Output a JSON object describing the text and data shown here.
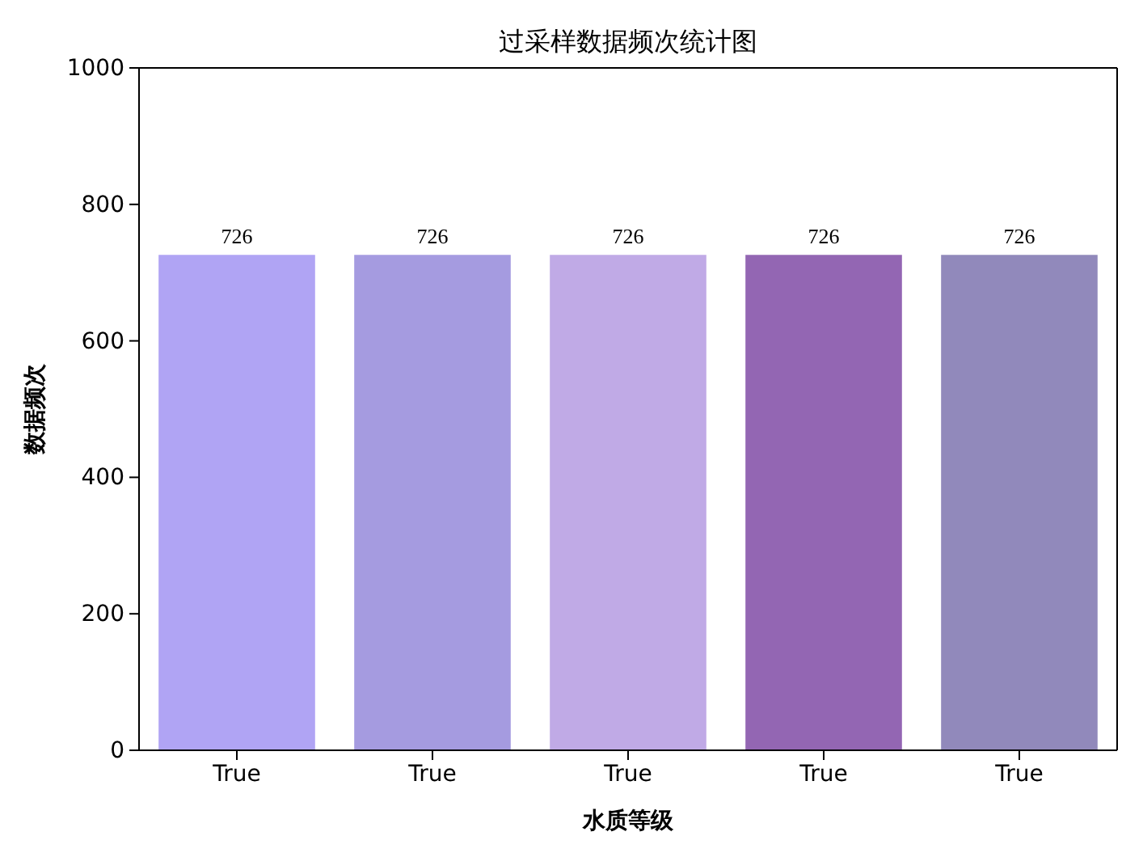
{
  "chart_data": {
    "type": "bar",
    "title": "过采样数据频次统计图",
    "xlabel": "水质等级",
    "ylabel": "数据频次",
    "categories": [
      "True",
      "True",
      "True",
      "True",
      "True"
    ],
    "values": [
      726,
      726,
      726,
      726,
      726
    ],
    "colors": [
      "#b0a4f4",
      "#a59be0",
      "#c0aae6",
      "#9366b3",
      "#9189bb"
    ],
    "ylim": [
      0,
      1000
    ],
    "yticks": [
      0,
      200,
      400,
      600,
      800,
      1000
    ],
    "data_labels": true
  }
}
